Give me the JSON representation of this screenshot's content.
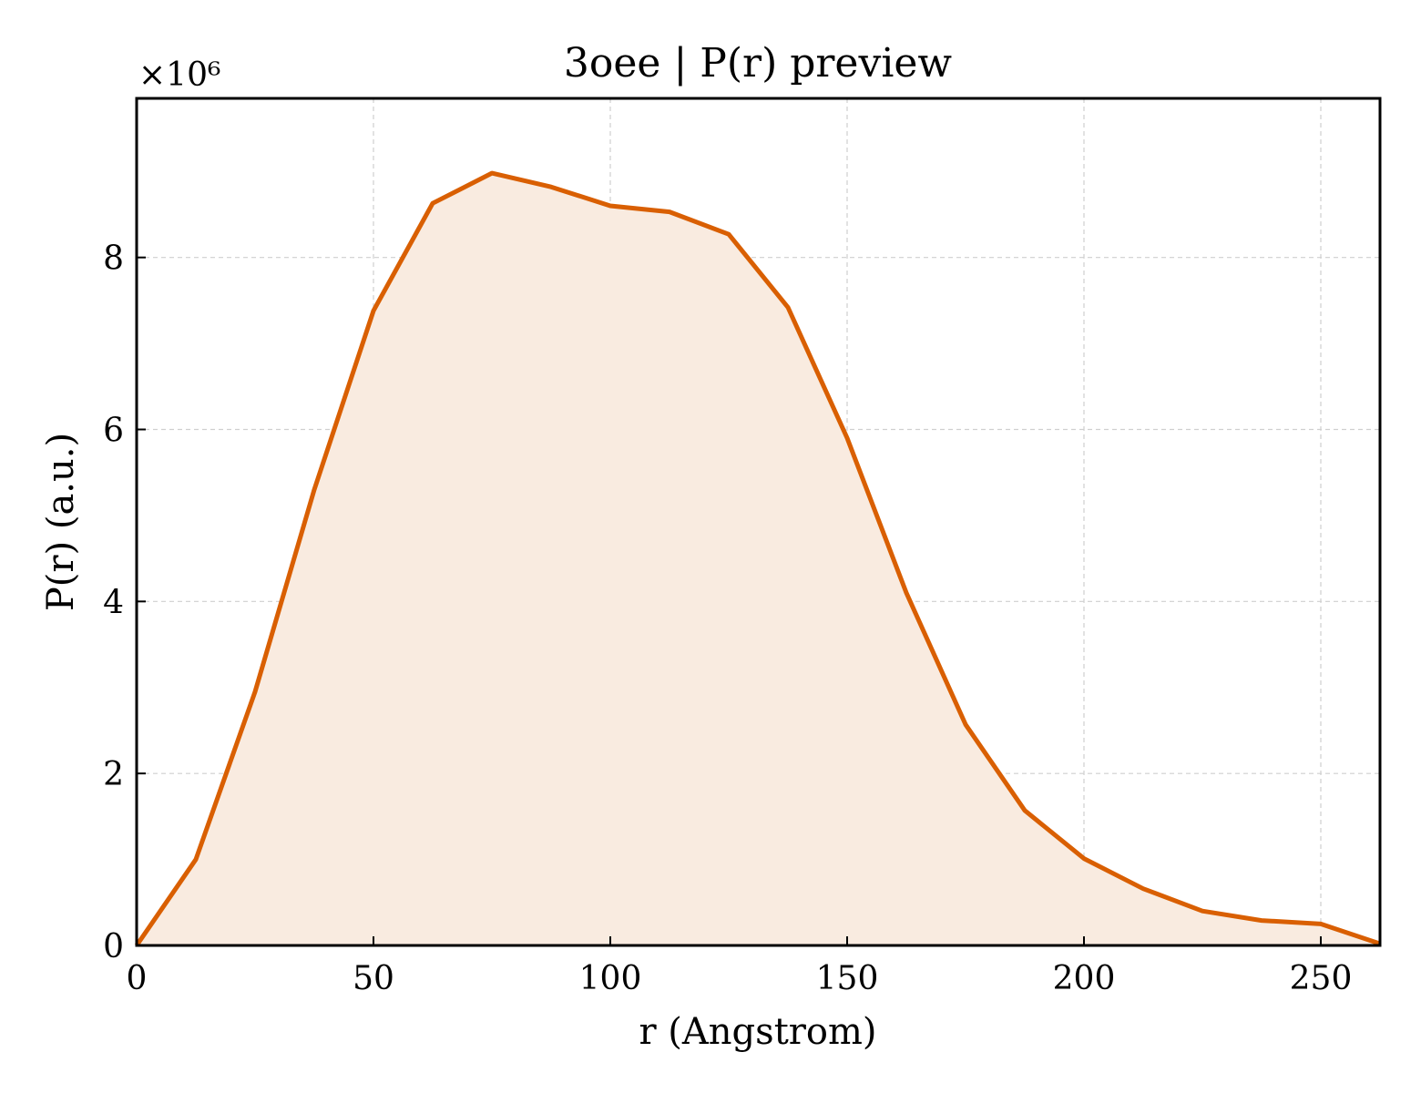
{
  "chart_data": {
    "type": "area",
    "title": "3oee | P(r) preview",
    "xlabel": "r (Angstrom)",
    "ylabel": "P(r) (a.u.)",
    "y_multiplier_label": "×10⁶",
    "y_scale": 1000000,
    "xlim": [
      0,
      262.5
    ],
    "ylim": [
      0,
      9.85
    ],
    "x_ticks": [
      0,
      50,
      100,
      150,
      200,
      250
    ],
    "y_ticks": [
      0,
      2,
      4,
      6,
      8
    ],
    "grid": true,
    "legend": "none",
    "colors": {
      "line": "#d95f02",
      "fill": "#f9ebe0"
    },
    "series": [
      {
        "x": [
          0,
          12.5,
          25,
          37.5,
          50,
          62.5,
          75,
          87.5,
          100,
          112.5,
          125,
          137.5,
          150,
          162.5,
          175,
          187.5,
          200,
          212.5,
          225,
          237.5,
          250,
          262.5
        ],
        "values": [
          0.0,
          1.0,
          2.95,
          5.3,
          7.38,
          8.63,
          8.98,
          8.82,
          8.6,
          8.53,
          8.27,
          7.42,
          5.9,
          4.1,
          2.57,
          1.57,
          1.01,
          0.66,
          0.4,
          0.29,
          0.25,
          0.02
        ]
      }
    ]
  }
}
